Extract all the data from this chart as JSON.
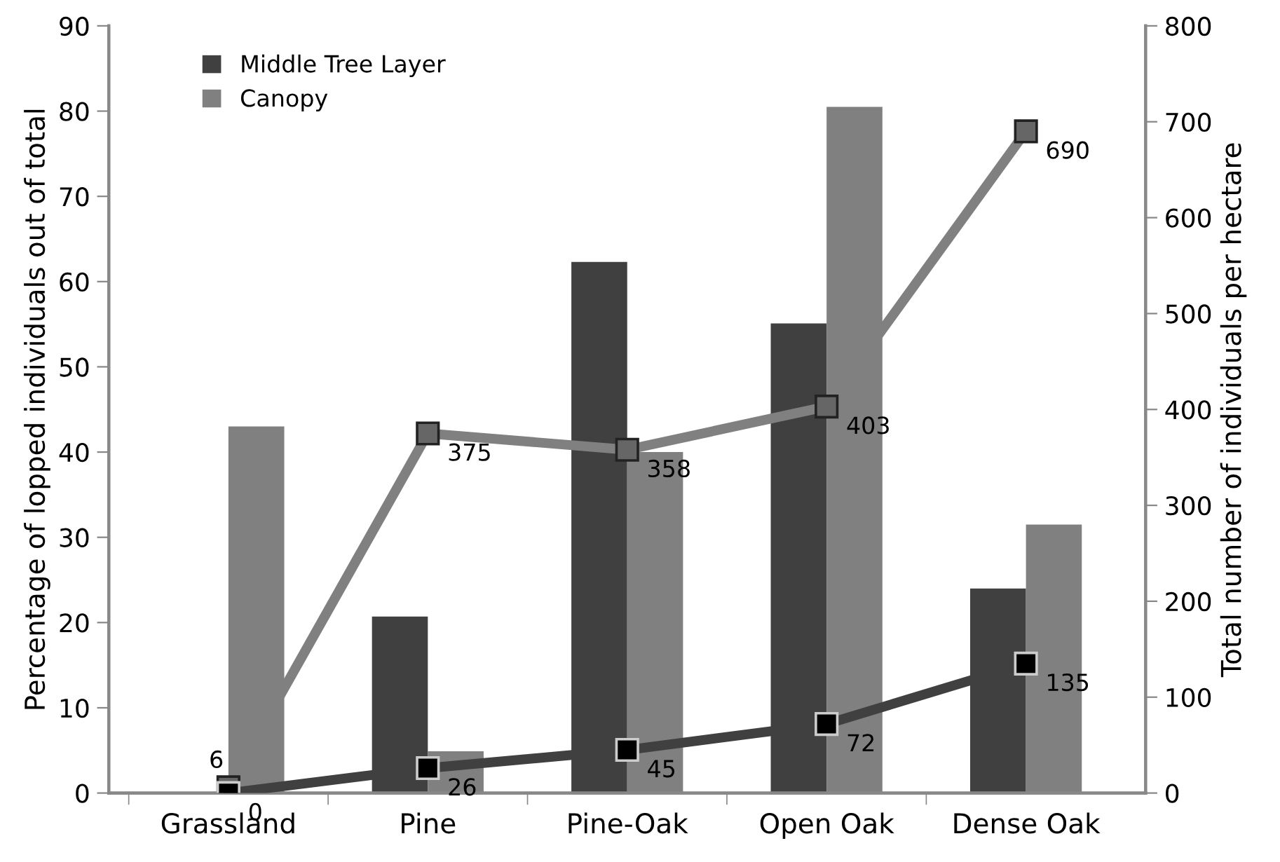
{
  "chart_data": {
    "type": "bar",
    "categories": [
      "Grassland",
      "Pine",
      "Pine-Oak",
      "Open Oak",
      "Dense Oak"
    ],
    "ylabel": "Percentage of lopped individuals out of total",
    "y2label": "Total number of individuals per hectare",
    "ylim": [
      0,
      90
    ],
    "yticks": [
      0,
      10,
      20,
      30,
      40,
      50,
      60,
      70,
      80,
      90
    ],
    "y2lim": [
      0,
      800
    ],
    "y2ticks": [
      0,
      100,
      200,
      300,
      400,
      500,
      600,
      700,
      800
    ],
    "legend": "top left",
    "grid": false,
    "marker": "square",
    "series": [
      {
        "name": "Middle Tree Layer",
        "color": "#404040",
        "values": [
          0,
          20.7,
          62.3,
          55.1,
          24
        ]
      },
      {
        "name": "Canopy",
        "color": "#808080",
        "values": [
          43,
          4.9,
          40,
          80.5,
          31.5
        ]
      },
      {
        "type": "line",
        "axis": "y2",
        "color": "#808080",
        "values": [
          6,
          375,
          358,
          403,
          690
        ],
        "value_labels": [
          "6",
          "375",
          "358",
          "403",
          "690"
        ]
      },
      {
        "type": "line",
        "axis": "y2",
        "color": "#404040",
        "values": [
          0,
          26,
          45,
          72,
          135
        ],
        "value_labels": [
          "0",
          "26",
          "45",
          "72",
          "135"
        ]
      }
    ]
  }
}
